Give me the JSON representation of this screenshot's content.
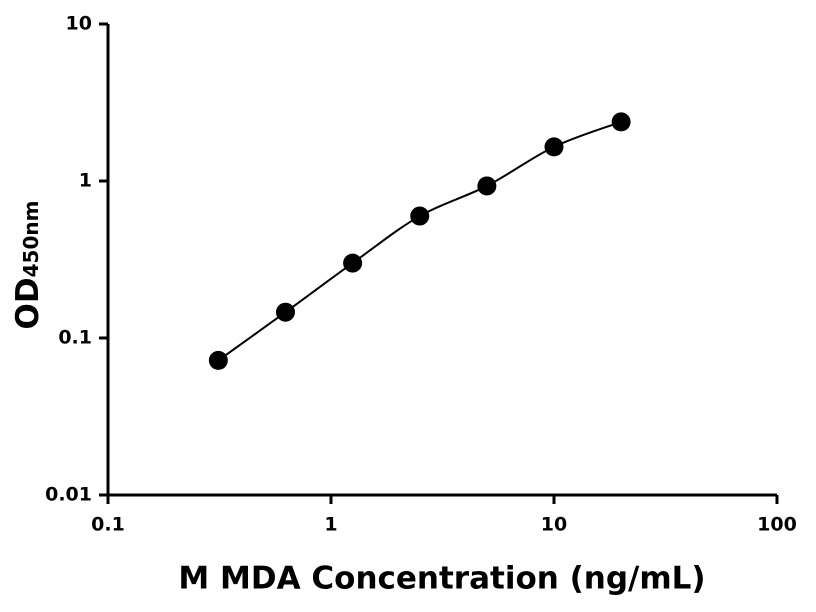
{
  "chart_data": {
    "type": "scatter",
    "xlabel": "M MDA Concentration (ng/mL)",
    "ylabel": "OD",
    "ylabel_sub": "450nm",
    "x": [
      0.3125,
      0.625,
      1.25,
      2.5,
      5,
      10,
      20
    ],
    "series": [
      {
        "color": "#000000",
        "values": [
          0.072,
          0.146,
          0.3,
          0.598,
          0.93,
          1.65,
          2.38
        ]
      }
    ],
    "xlim": [
      0.1,
      100
    ],
    "xticks": [
      0.1,
      1,
      10,
      100
    ],
    "ylim": [
      0.01,
      10
    ],
    "yticks": [
      0.01,
      0.1,
      1,
      10
    ],
    "xscale": "log",
    "yscale": "log",
    "fit_line": true,
    "grid": false
  }
}
